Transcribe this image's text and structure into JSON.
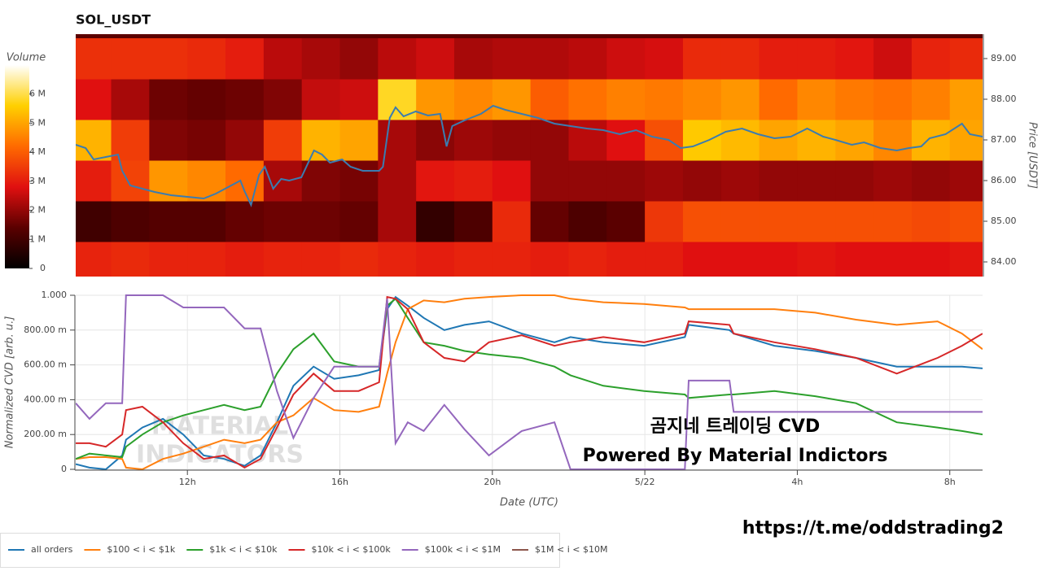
{
  "chart_data": [
    {
      "type": "heatmap",
      "title": "SOL_USDT",
      "colorbar_title": "Volume",
      "ylabel": "Price [USDT]",
      "xlim": [
        9.07,
        32.86
      ],
      "ylim": [
        83.64,
        89.6
      ],
      "yticks": [
        {
          "value": 84,
          "label": "84.00"
        },
        {
          "value": 85,
          "label": "85.00"
        },
        {
          "value": 86,
          "label": "86.00"
        },
        {
          "value": 87,
          "label": "87.00"
        },
        {
          "value": 88,
          "label": "88.00"
        },
        {
          "value": 89,
          "label": "89.00"
        }
      ],
      "x_bins": [
        9,
        10,
        11,
        12,
        13,
        14,
        15,
        16,
        17,
        18,
        19,
        20,
        21,
        22,
        23,
        24,
        25,
        26,
        27,
        28,
        29,
        30,
        31,
        32,
        33
      ],
      "y_bins": [
        83.5,
        84.5,
        85.5,
        86.5,
        87.5,
        88.5,
        89.5
      ],
      "values": [
        [
          3100000,
          3200000,
          3100000,
          3100000,
          3000000,
          3100000,
          3100000,
          3200000,
          3100000,
          3000000,
          3100000,
          3100000,
          3000000,
          3100000,
          3000000,
          3000000,
          2800000,
          2800000,
          2800000,
          2900000,
          2800000,
          2800000,
          2800000,
          2900000
        ],
        [
          1000000,
          1200000,
          1300000,
          1300000,
          1500000,
          1600000,
          1600000,
          1500000,
          2200000,
          800000,
          1200000,
          3200000,
          1500000,
          1200000,
          1400000,
          3400000,
          3800000,
          3800000,
          3800000,
          3800000,
          3800000,
          3800000,
          3700000,
          3800000
        ],
        [
          3000000,
          3600000,
          4800000,
          4600000,
          4200000,
          2200000,
          1800000,
          1700000,
          2200000,
          2900000,
          3000000,
          2800000,
          2000000,
          2000000,
          2000000,
          2100000,
          2000000,
          2100000,
          2000000,
          2000000,
          2000000,
          2100000,
          2000000,
          2100000
        ],
        [
          5200000,
          3500000,
          1800000,
          1700000,
          2000000,
          3500000,
          5200000,
          5000000,
          2200000,
          1900000,
          2100000,
          2000000,
          2000000,
          2400000,
          2800000,
          3800000,
          5500000,
          5300000,
          5000000,
          5200000,
          5000000,
          4600000,
          5200000,
          5000000
        ],
        [
          2800000,
          2200000,
          1600000,
          1500000,
          1600000,
          1800000,
          2500000,
          2600000,
          5800000,
          4800000,
          4600000,
          4800000,
          4000000,
          4300000,
          4500000,
          4400000,
          4600000,
          4800000,
          4200000,
          4600000,
          4400000,
          4300000,
          4500000,
          4900000
        ],
        [
          3300000,
          3300000,
          3300000,
          3200000,
          3000000,
          2400000,
          2200000,
          2000000,
          2400000,
          2600000,
          2200000,
          2300000,
          2300000,
          2400000,
          2600000,
          2700000,
          3200000,
          3200000,
          3000000,
          3000000,
          2900000,
          2600000,
          3100000,
          3200000
        ]
      ],
      "clim": [
        0,
        7000000
      ],
      "cticks": [
        0,
        {
          "value": 1000000,
          "label": "1 M"
        },
        {
          "value": 2000000,
          "label": "2 M"
        },
        {
          "value": 3000000,
          "label": "3 M"
        },
        {
          "value": 4000000,
          "label": "4 M"
        },
        {
          "value": 5000000,
          "label": "5 M"
        },
        {
          "value": 6000000,
          "label": "6 M"
        }
      ],
      "colormap": [
        "#000000",
        "#5a0000",
        "#e01010",
        "#ff6a00",
        "#ffd000",
        "#ffffff"
      ],
      "line": {
        "color": "#3b7cb0",
        "x": [
          9.07,
          9.33,
          9.54,
          9.86,
          10.18,
          10.29,
          10.5,
          10.82,
          11.14,
          11.57,
          12.0,
          12.43,
          12.75,
          13.07,
          13.39,
          13.5,
          13.67,
          13.88,
          14.03,
          14.25,
          14.46,
          14.67,
          14.99,
          15.32,
          15.53,
          15.74,
          16.06,
          16.28,
          16.6,
          17.03,
          17.13,
          17.31,
          17.46,
          17.67,
          17.99,
          18.31,
          18.63,
          18.8,
          18.95,
          19.27,
          19.7,
          20.02,
          20.34,
          20.77,
          21.2,
          21.63,
          22.05,
          22.48,
          22.91,
          23.34,
          23.77,
          24.19,
          24.62,
          24.94,
          25.26,
          25.69,
          26.12,
          26.55,
          26.97,
          27.4,
          27.83,
          28.26,
          28.68,
          29.0,
          29.43,
          29.75,
          30.18,
          30.61,
          30.93,
          31.25,
          31.47,
          31.89,
          32.32,
          32.53,
          32.86
        ],
        "values": [
          86.88,
          86.8,
          86.52,
          86.58,
          86.64,
          86.24,
          85.88,
          85.8,
          85.72,
          85.64,
          85.6,
          85.56,
          85.68,
          85.84,
          86.0,
          85.74,
          85.4,
          86.14,
          86.34,
          85.8,
          86.04,
          86.0,
          86.08,
          86.74,
          86.64,
          86.44,
          86.52,
          86.34,
          86.24,
          86.24,
          86.34,
          87.54,
          87.8,
          87.58,
          87.7,
          87.6,
          87.64,
          86.84,
          87.34,
          87.48,
          87.64,
          87.84,
          87.74,
          87.64,
          87.54,
          87.4,
          87.34,
          87.28,
          87.24,
          87.14,
          87.24,
          87.08,
          87.0,
          86.8,
          86.84,
          87.0,
          87.2,
          87.28,
          87.14,
          87.04,
          87.08,
          87.28,
          87.08,
          87.0,
          86.88,
          86.94,
          86.8,
          86.74,
          86.8,
          86.84,
          87.04,
          87.14,
          87.4,
          87.14,
          87.08
        ]
      }
    },
    {
      "type": "line",
      "xlabel": "Date (UTC)",
      "ylabel": "Normalized CVD [arb. u.]",
      "xlim": [
        9.07,
        32.86
      ],
      "ylim": [
        0,
        1
      ],
      "xticks": [
        {
          "value": 12,
          "label": "12h"
        },
        {
          "value": 16,
          "label": "16h"
        },
        {
          "value": 20,
          "label": "20h"
        },
        {
          "value": 24,
          "label": "5/22"
        },
        {
          "value": 28,
          "label": "4h"
        },
        {
          "value": 32,
          "label": "8h"
        }
      ],
      "yticks": [
        0,
        {
          "value": 0.2,
          "label": "200.00 m"
        },
        {
          "value": 0.4,
          "label": "400.00 m"
        },
        {
          "value": 0.6,
          "label": "600.00 m"
        },
        {
          "value": 0.8,
          "label": "800.00 m"
        },
        {
          "value": 1,
          "label": "1.000"
        }
      ],
      "grid": true,
      "legend": "bottom",
      "x": [
        9.07,
        9.43,
        9.86,
        10.29,
        10.39,
        10.82,
        11.36,
        11.89,
        12.43,
        12.96,
        13.5,
        13.92,
        14.35,
        14.78,
        15.31,
        15.85,
        16.49,
        17.03,
        17.24,
        17.46,
        17.78,
        18.2,
        18.74,
        19.27,
        19.91,
        20.77,
        21.63,
        22.05,
        22.91,
        23.98,
        25.05,
        25.15,
        26.22,
        26.33,
        27.4,
        28.47,
        29.54,
        30.61,
        31.68,
        32.32,
        32.86
      ],
      "series": [
        {
          "name": "all orders",
          "color": "#1f77b4",
          "values": [
            0.03,
            0.01,
            0,
            0.08,
            0.17,
            0.24,
            0.29,
            0.2,
            0.08,
            0.06,
            0.02,
            0.08,
            0.27,
            0.48,
            0.59,
            0.52,
            0.54,
            0.57,
            0.92,
            0.99,
            0.94,
            0.87,
            0.8,
            0.83,
            0.85,
            0.78,
            0.73,
            0.76,
            0.73,
            0.71,
            0.76,
            0.83,
            0.8,
            0.78,
            0.71,
            0.68,
            0.64,
            0.59,
            0.59,
            0.59,
            0.58
          ]
        },
        {
          "name": "$100 < i < $1k",
          "color": "#ff7f0e",
          "values": [
            0.06,
            0.07,
            0.07,
            0.06,
            0.01,
            0,
            0.06,
            0.09,
            0.13,
            0.17,
            0.15,
            0.17,
            0.27,
            0.31,
            0.41,
            0.34,
            0.33,
            0.36,
            0.55,
            0.73,
            0.92,
            0.97,
            0.96,
            0.98,
            0.99,
            1.0,
            1.0,
            0.98,
            0.96,
            0.95,
            0.93,
            0.92,
            0.92,
            0.92,
            0.92,
            0.9,
            0.86,
            0.83,
            0.85,
            0.78,
            0.69
          ]
        },
        {
          "name": "$1k < i < $10k",
          "color": "#2ca02c",
          "values": [
            0.06,
            0.09,
            0.08,
            0.07,
            0.13,
            0.2,
            0.27,
            0.31,
            0.34,
            0.37,
            0.34,
            0.36,
            0.55,
            0.69,
            0.78,
            0.62,
            0.59,
            0.59,
            0.94,
            0.98,
            0.87,
            0.73,
            0.71,
            0.68,
            0.66,
            0.64,
            0.59,
            0.54,
            0.48,
            0.45,
            0.43,
            0.41,
            0.43,
            0.43,
            0.45,
            0.42,
            0.38,
            0.27,
            0.24,
            0.22,
            0.2
          ]
        },
        {
          "name": "$10k < i < $100k",
          "color": "#d62728",
          "values": [
            0.15,
            0.15,
            0.13,
            0.2,
            0.34,
            0.36,
            0.27,
            0.15,
            0.06,
            0.08,
            0.01,
            0.06,
            0.24,
            0.43,
            0.55,
            0.45,
            0.45,
            0.5,
            0.99,
            0.98,
            0.92,
            0.73,
            0.64,
            0.62,
            0.73,
            0.77,
            0.71,
            0.73,
            0.76,
            0.73,
            0.78,
            0.85,
            0.83,
            0.78,
            0.73,
            0.69,
            0.64,
            0.55,
            0.64,
            0.71,
            0.78
          ]
        },
        {
          "name": "$100k < i < $1M",
          "color": "#9467bd",
          "values": [
            0.38,
            0.29,
            0.38,
            0.38,
            1.0,
            1.0,
            1.0,
            0.93,
            0.93,
            0.93,
            0.81,
            0.81,
            0.45,
            0.18,
            0.41,
            0.59,
            0.59,
            0.59,
            0.98,
            0.15,
            0.27,
            0.22,
            0.37,
            0.23,
            0.08,
            0.22,
            0.27,
            0,
            0,
            0,
            0,
            0.51,
            0.51,
            0.33,
            0.33,
            0.33,
            0.33,
            0.33,
            0.33,
            0.33,
            0.33
          ]
        },
        {
          "name": "$1M < i < $10M",
          "color": "#8c564b",
          "values": [
            null,
            null,
            null,
            null,
            null,
            null,
            null,
            null,
            null,
            null,
            null,
            null,
            null,
            null,
            null,
            null,
            null,
            null,
            null,
            null,
            null,
            null,
            null,
            null,
            null,
            null,
            null,
            null,
            null,
            null,
            null,
            null,
            null,
            null,
            null,
            null,
            null,
            null,
            null,
            null,
            null
          ]
        }
      ]
    }
  ],
  "watermark": [
    "MATERIAL",
    "INDICATORS"
  ],
  "annotations": [
    "곰지네 트레이딩 CVD",
    "Powered By Material Indictors",
    "https://t.me/oddstrading2"
  ]
}
